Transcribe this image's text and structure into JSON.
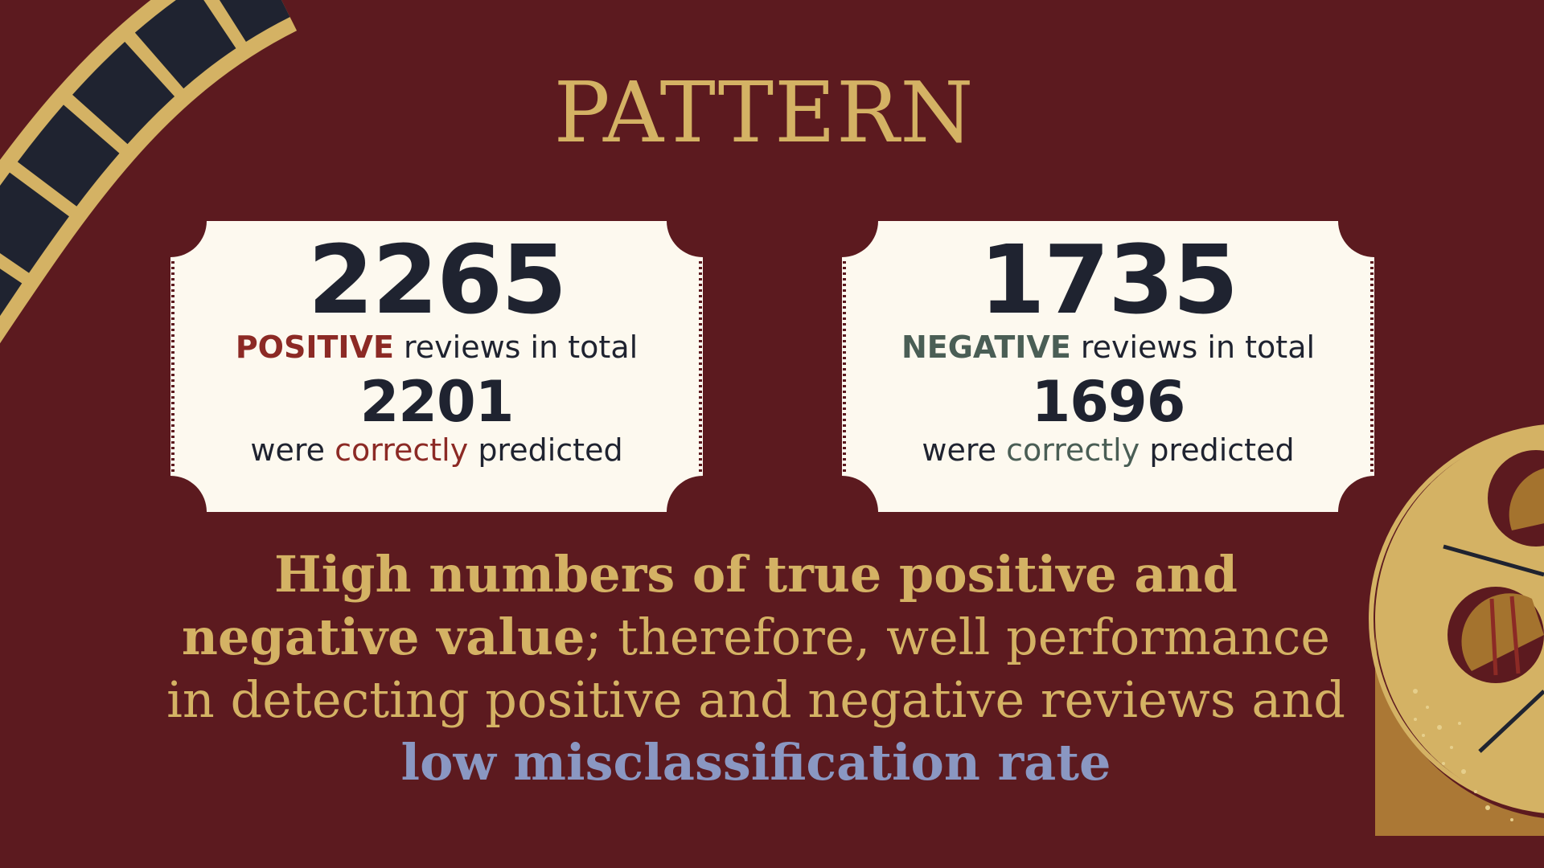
{
  "title": "PATTERN",
  "positive_card": {
    "total": "2265",
    "keyword": "POSITIVE",
    "total_suffix": " reviews in total",
    "correct": "2201",
    "were": "were ",
    "correctly": "correctly",
    "predicted": " predicted",
    "accent_color": "#8c2a25"
  },
  "negative_card": {
    "total": "1735",
    "keyword": "NEGATIVE",
    "total_suffix": " reviews in total",
    "correct": "1696",
    "were": "were ",
    "correctly": "correctly",
    "predicted": " predicted",
    "accent_color": "#4a5e55"
  },
  "summary": {
    "part1": "High numbers of true positive and negative value",
    "part2": "; therefore, well performance in detecting positive and negative reviews and ",
    "part3": "low misclassification rate"
  },
  "colors": {
    "background": "#5c1a1f",
    "gold": "#d4b264",
    "ticket": "#fdf9ef",
    "dark": "#1f2330",
    "blue": "#8a97c2"
  },
  "icons": [
    "film-strip-icon",
    "film-reel-icon"
  ]
}
